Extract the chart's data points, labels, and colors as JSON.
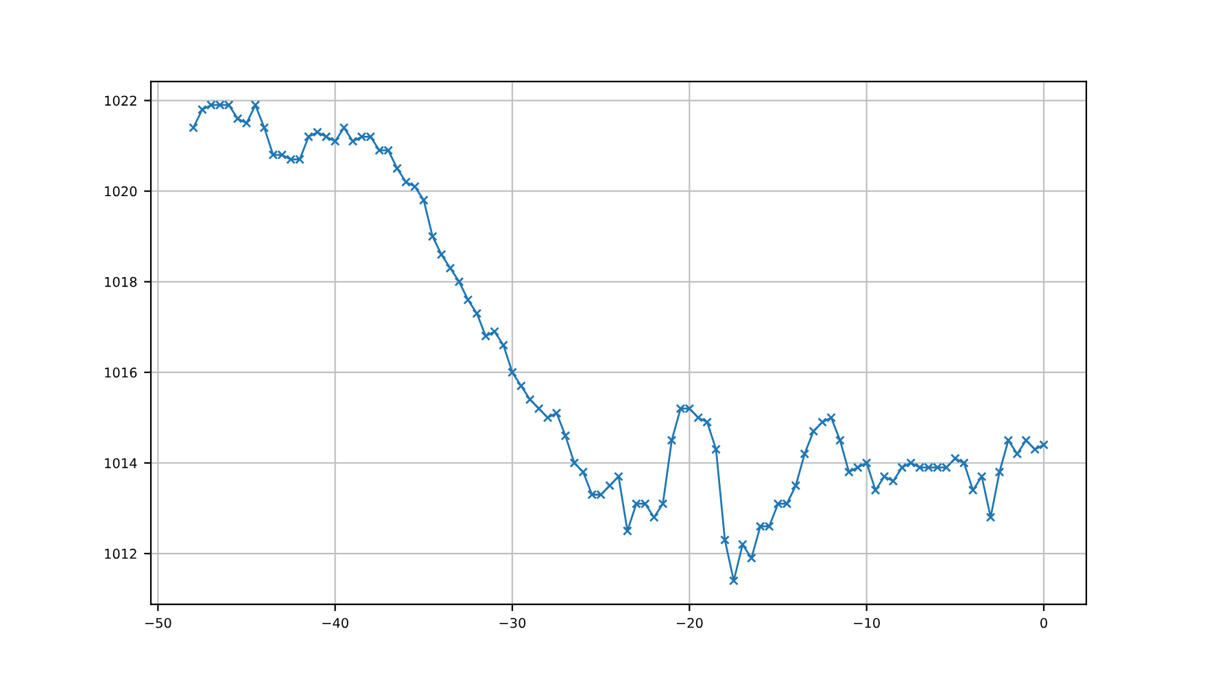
{
  "chart_data": {
    "type": "line",
    "x": [
      -48,
      -47.5,
      -47,
      -46.5,
      -46,
      -45.5,
      -45,
      -44.5,
      -44,
      -43.5,
      -43,
      -42.5,
      -42,
      -41.5,
      -41,
      -40.5,
      -40,
      -39.5,
      -39,
      -38.5,
      -38,
      -37.5,
      -37,
      -36.5,
      -36,
      -35.5,
      -35,
      -34.5,
      -34,
      -33.5,
      -33,
      -32.5,
      -32,
      -31.5,
      -31,
      -30.5,
      -30,
      -29.5,
      -29,
      -28.5,
      -28,
      -27.5,
      -27,
      -26.5,
      -26,
      -25.5,
      -25,
      -24.5,
      -24,
      -23.5,
      -23,
      -22.5,
      -22,
      -21.5,
      -21,
      -20.5,
      -20,
      -19.5,
      -19,
      -18.5,
      -18,
      -17.5,
      -17,
      -16.5,
      -16,
      -15.5,
      -15,
      -14.5,
      -14,
      -13.5,
      -13,
      -12.5,
      -12,
      -11.5,
      -11,
      -10.5,
      -10,
      -9.5,
      -9,
      -8.5,
      -8,
      -7.5,
      -7,
      -6.5,
      -6,
      -5.5,
      -5,
      -4.5,
      -4,
      -3.5,
      -3,
      -2.5,
      -2,
      -1.5,
      -1,
      -0.5,
      0
    ],
    "series": [
      {
        "color": "#1f77b4",
        "values": [
          1021.4,
          1021.8,
          1021.9,
          1021.9,
          1021.9,
          1021.6,
          1021.5,
          1021.9,
          1021.4,
          1020.8,
          1020.8,
          1020.7,
          1020.7,
          1021.2,
          1021.3,
          1021.2,
          1021.1,
          1021.4,
          1021.1,
          1021.2,
          1021.2,
          1020.9,
          1020.9,
          1020.5,
          1020.2,
          1020.1,
          1019.8,
          1019.0,
          1018.6,
          1018.3,
          1018.0,
          1017.6,
          1017.3,
          1016.8,
          1016.9,
          1016.6,
          1016.0,
          1015.7,
          1015.4,
          1015.2,
          1015.0,
          1015.1,
          1014.6,
          1014.0,
          1013.8,
          1013.3,
          1013.3,
          1013.5,
          1013.7,
          1012.5,
          1013.1,
          1013.1,
          1012.8,
          1013.1,
          1014.5,
          1015.2,
          1015.2,
          1015.0,
          1014.9,
          1014.3,
          1012.3,
          1011.4,
          1012.2,
          1011.9,
          1012.6,
          1012.6,
          1013.1,
          1013.1,
          1013.5,
          1014.2,
          1014.7,
          1014.9,
          1015.0,
          1014.5,
          1013.8,
          1013.9,
          1014.0,
          1013.4,
          1013.7,
          1013.6,
          1013.9,
          1014.0,
          1013.9,
          1013.9,
          1013.9,
          1013.9,
          1014.1,
          1014.0,
          1013.4,
          1013.7,
          1012.8,
          1013.8,
          1014.5,
          1014.2,
          1014.5,
          1014.3,
          1014.4
        ]
      }
    ],
    "xlim": [
      -50.4,
      2.4
    ],
    "ylim": [
      1010.88,
      1022.42
    ],
    "xticks": [
      {
        "value": -50,
        "label": "−50"
      },
      {
        "value": -40,
        "label": "−40"
      },
      {
        "value": -30,
        "label": "−30"
      },
      {
        "value": -20,
        "label": "−20"
      },
      {
        "value": -10,
        "label": "−10"
      },
      0
    ],
    "yticks": [
      1012,
      1014,
      1016,
      1018,
      1020,
      1022
    ],
    "grid": true,
    "marker": "cross",
    "line_style": "solid"
  }
}
